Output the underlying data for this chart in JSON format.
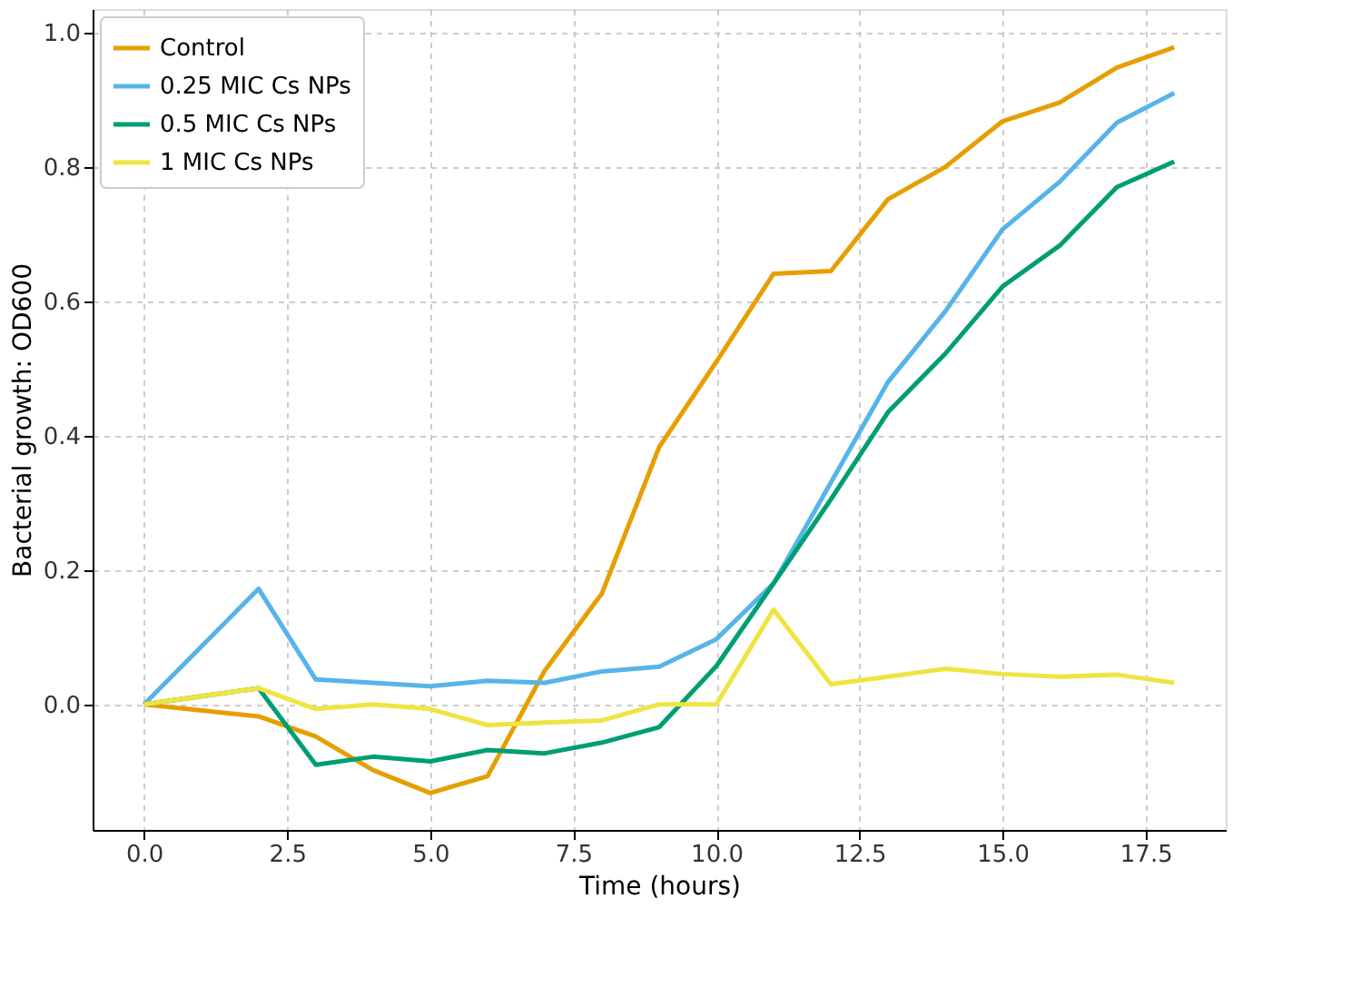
{
  "chart_data": {
    "type": "line",
    "xlabel": "Time (hours)",
    "ylabel": "Bacterial growth: OD600",
    "x": [
      0,
      2,
      3,
      4,
      5,
      6,
      7,
      8,
      9,
      10,
      11,
      12,
      13,
      14,
      15,
      16,
      17,
      18
    ],
    "series": [
      {
        "name": "Control",
        "color": "#e69f00",
        "values": [
          0,
          -0.018,
          -0.048,
          -0.098,
          -0.132,
          -0.107,
          0.05,
          0.165,
          0.383,
          0.51,
          0.641,
          0.645,
          0.752,
          0.8,
          0.868,
          0.896,
          0.948,
          0.978
        ]
      },
      {
        "name": "0.25 MIC Cs NPs",
        "color": "#56b4e9",
        "values": [
          0,
          0.172,
          0.037,
          0.032,
          0.027,
          0.035,
          0.032,
          0.049,
          0.056,
          0.097,
          0.18,
          0.33,
          0.48,
          0.585,
          0.707,
          0.778,
          0.866,
          0.91
        ]
      },
      {
        "name": "0.5 MIC Cs NPs",
        "color": "#009e73",
        "values": [
          0,
          0.024,
          -0.09,
          -0.078,
          -0.085,
          -0.068,
          -0.073,
          -0.057,
          -0.034,
          0.057,
          0.18,
          0.305,
          0.435,
          0.522,
          0.622,
          0.683,
          0.77,
          0.808
        ]
      },
      {
        "name": "1 MIC Cs NPs",
        "color": "#f0e442",
        "values": [
          0,
          0.024,
          -0.007,
          0,
          -0.007,
          -0.031,
          -0.027,
          -0.024,
          0,
          0,
          0.141,
          0.03,
          0.041,
          0.053,
          0.045,
          0.041,
          0.044,
          0.032
        ]
      }
    ],
    "xlim": [
      -0.9,
      18.9
    ],
    "ylim": [
      -0.187,
      1.035
    ],
    "xticks": [
      {
        "value": 0,
        "label": "0.0"
      },
      {
        "value": 2.5,
        "label": "2.5"
      },
      {
        "value": 5,
        "label": "5.0"
      },
      {
        "value": 7.5,
        "label": "7.5"
      },
      {
        "value": 10,
        "label": "10.0"
      },
      {
        "value": 12.5,
        "label": "12.5"
      },
      {
        "value": 15,
        "label": "15.0"
      },
      {
        "value": 17.5,
        "label": "17.5"
      }
    ],
    "yticks": [
      {
        "value": 0,
        "label": "0.0"
      },
      {
        "value": 0.2,
        "label": "0.2"
      },
      {
        "value": 0.4,
        "label": "0.4"
      },
      {
        "value": 0.6,
        "label": "0.6"
      },
      {
        "value": 0.8,
        "label": "0.8"
      },
      {
        "value": 1.0,
        "label": "1.0"
      }
    ],
    "grid": true,
    "legend": "top left",
    "line_style": "solid",
    "marker": "none"
  }
}
